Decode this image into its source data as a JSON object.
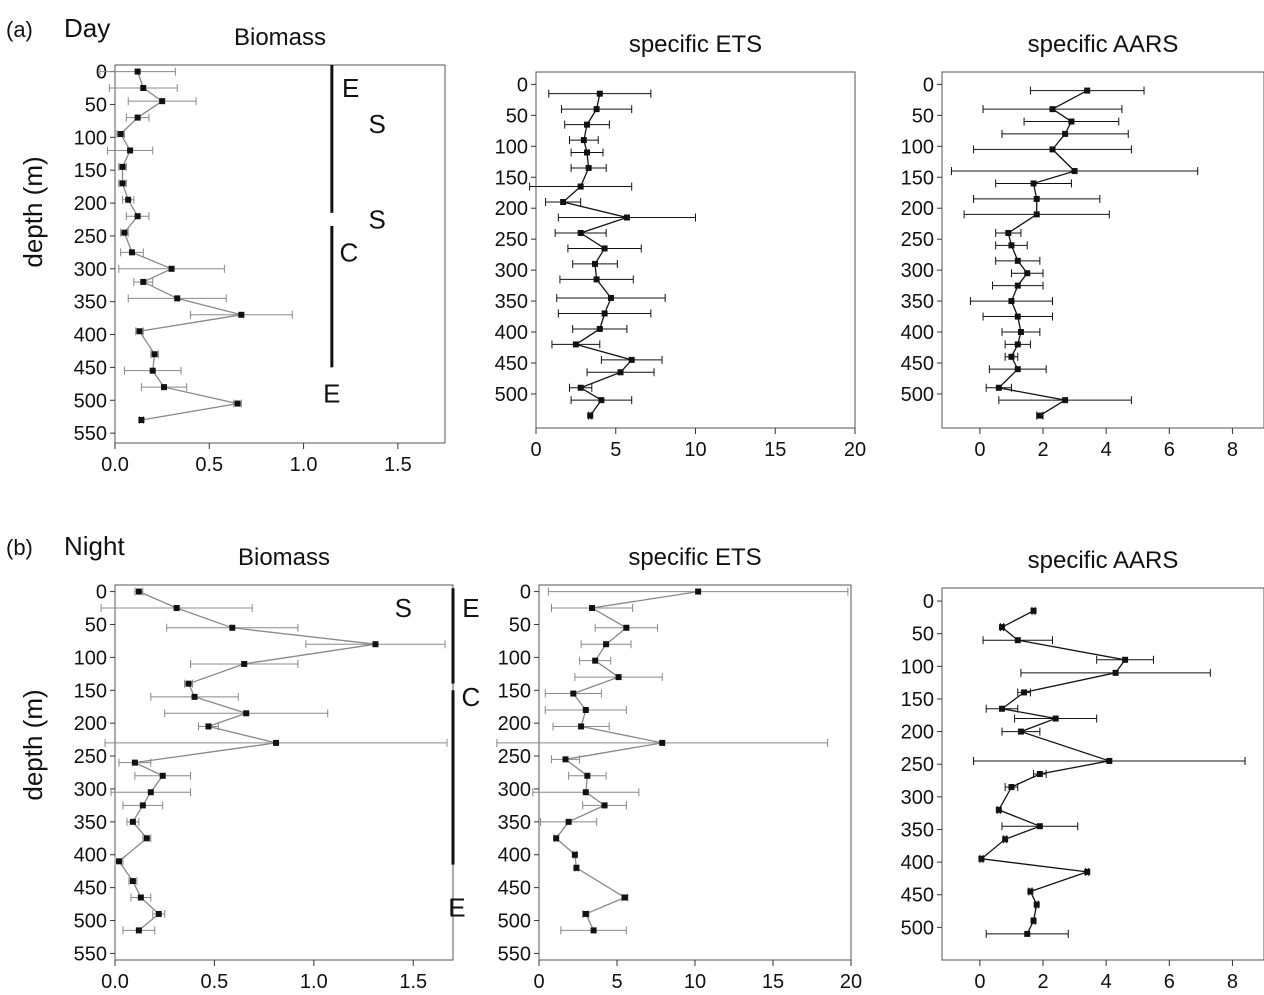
{
  "rows": [
    {
      "panel_label": "(a)",
      "title": "Day"
    },
    {
      "panel_label": "(b)",
      "title": "Night"
    }
  ],
  "ylabel": "depth (m)",
  "chart_data": [
    {
      "type": "line",
      "row": 0,
      "col": 0,
      "title": "Biomass",
      "xlim": [
        0,
        1.75
      ],
      "xticks": [
        0,
        0.5,
        1,
        1.5
      ],
      "xtick_labels": [
        "0.0",
        "0.5",
        "1.0",
        "1.5"
      ],
      "ylim": [
        -10,
        565
      ],
      "yticks": [
        0,
        50,
        100,
        150,
        200,
        250,
        300,
        350,
        400,
        450,
        500,
        550
      ],
      "line_color": "#888888",
      "points": [
        {
          "d": 0,
          "v": 0.12,
          "e": 0.2
        },
        {
          "d": 25,
          "v": 0.15,
          "e": 0.18
        },
        {
          "d": 45,
          "v": 0.25,
          "e": 0.18
        },
        {
          "d": 70,
          "v": 0.12,
          "e": 0.06
        },
        {
          "d": 95,
          "v": 0.03,
          "e": 0.02
        },
        {
          "d": 120,
          "v": 0.08,
          "e": 0.12
        },
        {
          "d": 145,
          "v": 0.04,
          "e": 0.02
        },
        {
          "d": 170,
          "v": 0.04,
          "e": 0.02
        },
        {
          "d": 195,
          "v": 0.07,
          "e": 0.03
        },
        {
          "d": 220,
          "v": 0.12,
          "e": 0.06
        },
        {
          "d": 245,
          "v": 0.05,
          "e": 0.02
        },
        {
          "d": 275,
          "v": 0.09,
          "e": 0.06
        },
        {
          "d": 300,
          "v": 0.3,
          "e": 0.28
        },
        {
          "d": 320,
          "v": 0.15,
          "e": 0.05
        },
        {
          "d": 345,
          "v": 0.33,
          "e": 0.26
        },
        {
          "d": 370,
          "v": 0.67,
          "e": 0.27
        },
        {
          "d": 395,
          "v": 0.13,
          "e": 0.02
        },
        {
          "d": 430,
          "v": 0.21,
          "e": 0.02
        },
        {
          "d": 455,
          "v": 0.2,
          "e": 0.15
        },
        {
          "d": 480,
          "v": 0.26,
          "e": 0.12
        },
        {
          "d": 505,
          "v": 0.65,
          "e": 0.02
        },
        {
          "d": 530,
          "v": 0.14,
          "e": 0.01
        }
      ],
      "vbars": [
        {
          "x": 1.15,
          "from": -10,
          "to": 215
        },
        {
          "x": 1.15,
          "from": 235,
          "to": 450
        }
      ],
      "labels": [
        {
          "text": "E",
          "x": 1.25,
          "d": 25
        },
        {
          "text": "S",
          "x": 1.39,
          "d": 80
        },
        {
          "text": "S",
          "x": 1.39,
          "d": 225
        },
        {
          "text": "C",
          "x": 1.24,
          "d": 275
        },
        {
          "text": "E",
          "x": 1.15,
          "d": 490
        }
      ]
    },
    {
      "type": "line",
      "row": 0,
      "col": 1,
      "title": "specific ETS",
      "xlim": [
        0,
        20
      ],
      "xticks": [
        0,
        5,
        10,
        15,
        20
      ],
      "xtick_labels": [
        "0",
        "5",
        "10",
        "15",
        "20"
      ],
      "ylim": [
        -20,
        555
      ],
      "yticks": [
        0,
        50,
        100,
        150,
        200,
        250,
        300,
        350,
        400,
        450,
        500
      ],
      "line_color": "#111111",
      "points": [
        {
          "d": 15,
          "v": 4.0,
          "e": 3.2
        },
        {
          "d": 40,
          "v": 3.8,
          "e": 2.2
        },
        {
          "d": 65,
          "v": 3.2,
          "e": 1.4
        },
        {
          "d": 90,
          "v": 3.0,
          "e": 0.9
        },
        {
          "d": 110,
          "v": 3.2,
          "e": 1.0
        },
        {
          "d": 135,
          "v": 3.3,
          "e": 1.1
        },
        {
          "d": 165,
          "v": 2.8,
          "e": 3.2
        },
        {
          "d": 190,
          "v": 1.7,
          "e": 1.1
        },
        {
          "d": 215,
          "v": 5.7,
          "e": 4.3
        },
        {
          "d": 240,
          "v": 2.8,
          "e": 1.6
        },
        {
          "d": 265,
          "v": 4.3,
          "e": 2.3
        },
        {
          "d": 290,
          "v": 3.7,
          "e": 1.4
        },
        {
          "d": 315,
          "v": 3.8,
          "e": 2.3
        },
        {
          "d": 345,
          "v": 4.7,
          "e": 3.4
        },
        {
          "d": 370,
          "v": 4.3,
          "e": 2.9
        },
        {
          "d": 395,
          "v": 4.0,
          "e": 1.7
        },
        {
          "d": 420,
          "v": 2.5,
          "e": 1.5
        },
        {
          "d": 445,
          "v": 6.0,
          "e": 1.9
        },
        {
          "d": 465,
          "v": 5.3,
          "e": 2.1
        },
        {
          "d": 490,
          "v": 2.8,
          "e": 0.7
        },
        {
          "d": 510,
          "v": 4.1,
          "e": 1.9
        },
        {
          "d": 535,
          "v": 3.4,
          "e": 0.1
        }
      ],
      "vbars": [],
      "labels": []
    },
    {
      "type": "line",
      "row": 0,
      "col": 2,
      "title": "specific AARS",
      "xlim": [
        -1.2,
        9
      ],
      "xticks": [
        0,
        2,
        4,
        6,
        8
      ],
      "xtick_labels": [
        "0",
        "2",
        "4",
        "6",
        "8"
      ],
      "ylim": [
        -20,
        555
      ],
      "yticks": [
        0,
        50,
        100,
        150,
        200,
        250,
        300,
        350,
        400,
        450,
        500
      ],
      "line_color": "#111111",
      "points": [
        {
          "d": 10,
          "v": 3.4,
          "e": 1.8
        },
        {
          "d": 40,
          "v": 2.3,
          "e": 2.2
        },
        {
          "d": 60,
          "v": 2.9,
          "e": 1.5
        },
        {
          "d": 80,
          "v": 2.7,
          "e": 2.0
        },
        {
          "d": 105,
          "v": 2.3,
          "e": 2.5
        },
        {
          "d": 140,
          "v": 3.0,
          "e": 3.9
        },
        {
          "d": 160,
          "v": 1.7,
          "e": 1.2
        },
        {
          "d": 185,
          "v": 1.8,
          "e": 2.0
        },
        {
          "d": 210,
          "v": 1.8,
          "e": 2.3
        },
        {
          "d": 240,
          "v": 0.9,
          "e": 0.4
        },
        {
          "d": 260,
          "v": 1.0,
          "e": 0.5
        },
        {
          "d": 285,
          "v": 1.2,
          "e": 0.7
        },
        {
          "d": 305,
          "v": 1.5,
          "e": 0.5
        },
        {
          "d": 325,
          "v": 1.2,
          "e": 0.8
        },
        {
          "d": 350,
          "v": 1.0,
          "e": 1.3
        },
        {
          "d": 375,
          "v": 1.2,
          "e": 1.1
        },
        {
          "d": 400,
          "v": 1.3,
          "e": 0.6
        },
        {
          "d": 420,
          "v": 1.2,
          "e": 0.4
        },
        {
          "d": 440,
          "v": 1.0,
          "e": 0.2
        },
        {
          "d": 460,
          "v": 1.2,
          "e": 0.9
        },
        {
          "d": 490,
          "v": 0.6,
          "e": 0.4
        },
        {
          "d": 510,
          "v": 2.7,
          "e": 2.1
        },
        {
          "d": 535,
          "v": 1.9,
          "e": 0.1
        }
      ],
      "vbars": [],
      "labels": []
    },
    {
      "type": "line",
      "row": 1,
      "col": 0,
      "title": "Biomass",
      "xlim": [
        0,
        1.7
      ],
      "xticks": [
        0,
        0.5,
        1,
        1.5
      ],
      "xtick_labels": [
        "0.0",
        "0.5",
        "1.0",
        "1.5"
      ],
      "ylim": [
        -10,
        560
      ],
      "yticks": [
        0,
        50,
        100,
        150,
        200,
        250,
        300,
        350,
        400,
        450,
        500,
        550
      ],
      "line_color": "#888888",
      "points": [
        {
          "d": 0,
          "v": 0.12,
          "e": 0.02
        },
        {
          "d": 25,
          "v": 0.31,
          "e": 0.38
        },
        {
          "d": 55,
          "v": 0.59,
          "e": 0.33
        },
        {
          "d": 80,
          "v": 1.31,
          "e": 0.35
        },
        {
          "d": 110,
          "v": 0.65,
          "e": 0.27
        },
        {
          "d": 140,
          "v": 0.37,
          "e": 0.02
        },
        {
          "d": 160,
          "v": 0.4,
          "e": 0.22
        },
        {
          "d": 185,
          "v": 0.66,
          "e": 0.41
        },
        {
          "d": 205,
          "v": 0.47,
          "e": 0.05
        },
        {
          "d": 230,
          "v": 0.81,
          "e": 0.86
        },
        {
          "d": 260,
          "v": 0.1,
          "e": 0.08
        },
        {
          "d": 280,
          "v": 0.24,
          "e": 0.14
        },
        {
          "d": 305,
          "v": 0.18,
          "e": 0.2
        },
        {
          "d": 325,
          "v": 0.14,
          "e": 0.1
        },
        {
          "d": 350,
          "v": 0.09,
          "e": 0.03
        },
        {
          "d": 375,
          "v": 0.16,
          "e": 0.02
        },
        {
          "d": 410,
          "v": 0.02,
          "e": 0.02
        },
        {
          "d": 440,
          "v": 0.09,
          "e": 0.02
        },
        {
          "d": 465,
          "v": 0.13,
          "e": 0.05
        },
        {
          "d": 490,
          "v": 0.22,
          "e": 0.03
        },
        {
          "d": 515,
          "v": 0.12,
          "e": 0.08
        }
      ],
      "vbars": [
        {
          "x": 1.7,
          "from": -5,
          "to": 140
        },
        {
          "x": 1.7,
          "from": 150,
          "to": 415
        }
      ],
      "labels": [
        {
          "text": "S",
          "x": 1.45,
          "d": 25
        },
        {
          "text": "E",
          "x": 1.79,
          "d": 25
        },
        {
          "text": "C",
          "x": 1.79,
          "d": 160
        },
        {
          "text": "E",
          "x": 1.72,
          "d": 480
        }
      ]
    },
    {
      "type": "line",
      "row": 1,
      "col": 1,
      "title": "specific ETS",
      "xlim": [
        0,
        20
      ],
      "xticks": [
        0,
        5,
        10,
        15,
        20
      ],
      "xtick_labels": [
        "0",
        "5",
        "10",
        "15",
        "20"
      ],
      "ylim": [
        -10,
        560
      ],
      "yticks": [
        0,
        50,
        100,
        150,
        200,
        250,
        300,
        350,
        400,
        450,
        500,
        550
      ],
      "line_color": "#888888",
      "points": [
        {
          "d": 0,
          "v": 10.2,
          "e": 9.6
        },
        {
          "d": 25,
          "v": 3.4,
          "e": 2.6
        },
        {
          "d": 55,
          "v": 5.6,
          "e": 2.0
        },
        {
          "d": 80,
          "v": 4.3,
          "e": 1.6
        },
        {
          "d": 105,
          "v": 3.6,
          "e": 1.0
        },
        {
          "d": 130,
          "v": 5.1,
          "e": 2.8
        },
        {
          "d": 155,
          "v": 2.2,
          "e": 1.8
        },
        {
          "d": 180,
          "v": 3.0,
          "e": 2.6
        },
        {
          "d": 205,
          "v": 2.7,
          "e": 1.8
        },
        {
          "d": 230,
          "v": 7.9,
          "e": 10.6
        },
        {
          "d": 255,
          "v": 1.7,
          "e": 0.9
        },
        {
          "d": 280,
          "v": 3.1,
          "e": 1.2
        },
        {
          "d": 305,
          "v": 3.0,
          "e": 3.4
        },
        {
          "d": 325,
          "v": 4.2,
          "e": 1.4
        },
        {
          "d": 350,
          "v": 1.9,
          "e": 1.8
        },
        {
          "d": 375,
          "v": 1.1,
          "e": 0.1
        },
        {
          "d": 400,
          "v": 2.3,
          "e": 0.1
        },
        {
          "d": 420,
          "v": 2.4,
          "e": 0.1
        },
        {
          "d": 465,
          "v": 5.5,
          "e": 0.2
        },
        {
          "d": 490,
          "v": 3.0,
          "e": 0.2
        },
        {
          "d": 515,
          "v": 3.5,
          "e": 2.1
        }
      ],
      "vbars": [],
      "labels": []
    },
    {
      "type": "line",
      "row": 1,
      "col": 2,
      "title": "specific AARS",
      "xlim": [
        -1.2,
        9
      ],
      "xticks": [
        0,
        2,
        4,
        6,
        8
      ],
      "xtick_labels": [
        "0",
        "2",
        "4",
        "6",
        "8"
      ],
      "ylim": [
        -20,
        550
      ],
      "yticks": [
        0,
        50,
        100,
        150,
        200,
        250,
        300,
        350,
        400,
        450,
        500
      ],
      "line_color": "#111111",
      "points": [
        {
          "d": 15,
          "v": 1.7,
          "e": 0.05
        },
        {
          "d": 40,
          "v": 0.7,
          "e": 0.05
        },
        {
          "d": 60,
          "v": 1.2,
          "e": 1.1
        },
        {
          "d": 90,
          "v": 4.6,
          "e": 0.9
        },
        {
          "d": 110,
          "v": 4.3,
          "e": 3.0
        },
        {
          "d": 140,
          "v": 1.4,
          "e": 0.2
        },
        {
          "d": 165,
          "v": 0.7,
          "e": 0.5
        },
        {
          "d": 180,
          "v": 2.4,
          "e": 1.3
        },
        {
          "d": 200,
          "v": 1.3,
          "e": 0.6
        },
        {
          "d": 245,
          "v": 4.1,
          "e": 4.3
        },
        {
          "d": 265,
          "v": 1.9,
          "e": 0.2
        },
        {
          "d": 285,
          "v": 1.0,
          "e": 0.2
        },
        {
          "d": 320,
          "v": 0.6,
          "e": 0.05
        },
        {
          "d": 345,
          "v": 1.9,
          "e": 1.2
        },
        {
          "d": 365,
          "v": 0.8,
          "e": 0.05
        },
        {
          "d": 395,
          "v": 0.05,
          "e": 0.05
        },
        {
          "d": 415,
          "v": 3.4,
          "e": 0.05
        },
        {
          "d": 445,
          "v": 1.6,
          "e": 0.05
        },
        {
          "d": 465,
          "v": 1.8,
          "e": 0.05
        },
        {
          "d": 490,
          "v": 1.7,
          "e": 0.05
        },
        {
          "d": 510,
          "v": 1.5,
          "e": 1.3
        }
      ],
      "vbars": [],
      "labels": []
    }
  ]
}
